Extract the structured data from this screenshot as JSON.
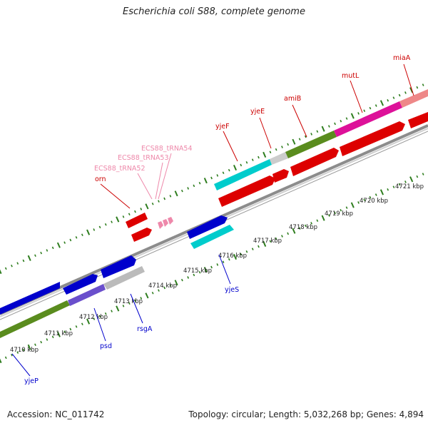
{
  "title": "Escherichia coli S88, complete genome",
  "footer": {
    "accession": "Accession: NC_011742",
    "summary": "Topology: circular; Length: 5,032,268 bp; Genes: 4,894"
  },
  "colors": {
    "backbone": "#9a9a9a",
    "tick": "#2e7d1e",
    "label_top": "#cc0000",
    "label_trna": "#ee88aa",
    "label_bottom": "#0000cc"
  },
  "scale_labels": [
    "4710 kbp",
    "4711 kbp",
    "4712 kbp",
    "4713 kbp",
    "4714 kbp",
    "4715 kbp",
    "4716 kbp",
    "4717 kbp",
    "4718 kbp",
    "4719 kbp",
    "4720 kbp",
    "4721 kbp"
  ],
  "gene_labels_top": [
    "orn",
    "ECS88_tRNA52",
    "ECS88_tRNA53",
    "ECS88_tRNA54",
    "yjeF",
    "yjeE",
    "amiB",
    "mutL",
    "miaA"
  ],
  "gene_labels_bottom": [
    "yjeP",
    "psd",
    "rsgA",
    "yjeS"
  ]
}
